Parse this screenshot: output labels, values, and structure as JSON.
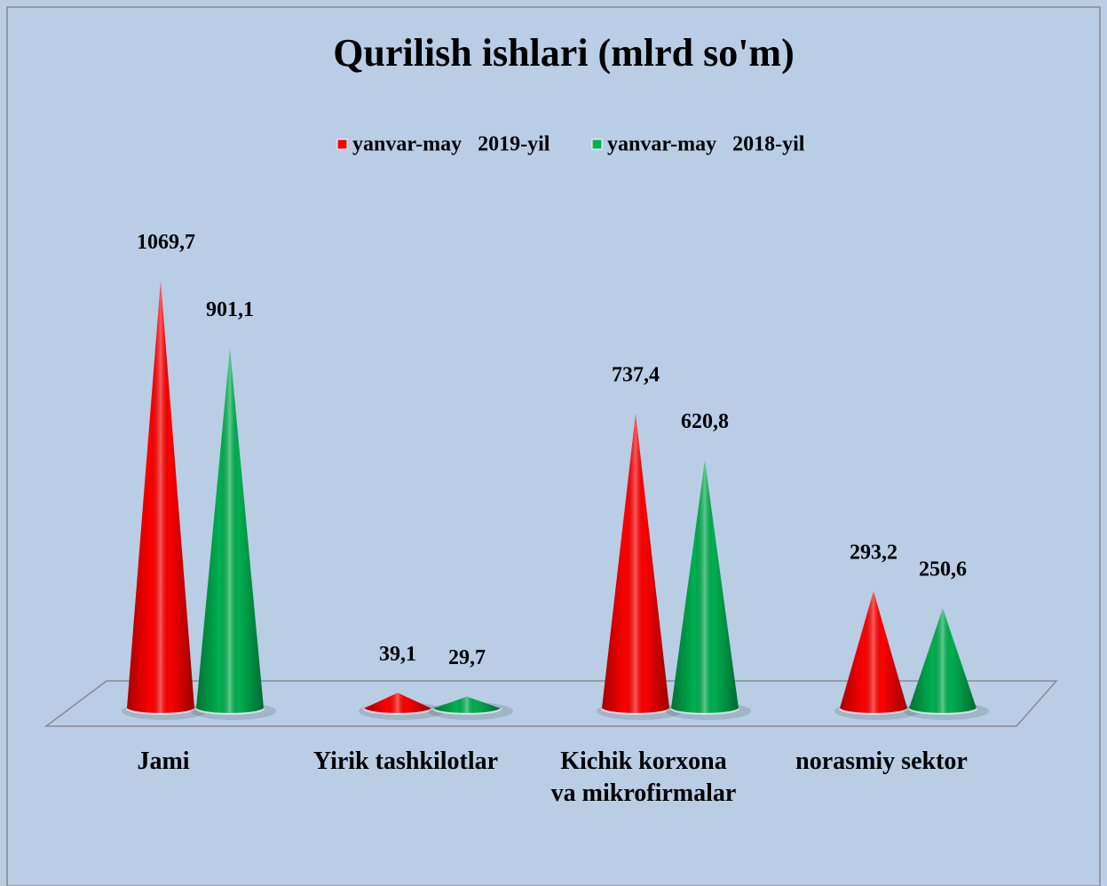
{
  "chart_data": {
    "type": "cone",
    "title": "Qurilish ishlari (mlrd so'm)",
    "categories": [
      "Jami",
      "Yirik tashkilotlar",
      "Kichik korxona\nva mikrofirmalar",
      "norasmiy sektor"
    ],
    "series": [
      {
        "name": "yanvar-may   2019-yil",
        "color": "#ff0000",
        "values": [
          1069.7,
          39.1,
          737.4,
          293.2
        ],
        "value_labels": [
          "1069,7",
          "39,1",
          "737,4",
          "293,2"
        ]
      },
      {
        "name": "yanvar-may   2018-yil",
        "color": "#00b050",
        "values": [
          901.1,
          29.7,
          620.8,
          250.6
        ],
        "value_labels": [
          "901,1",
          "29,7",
          "620,8",
          "250,6"
        ]
      }
    ],
    "legend": "top"
  }
}
